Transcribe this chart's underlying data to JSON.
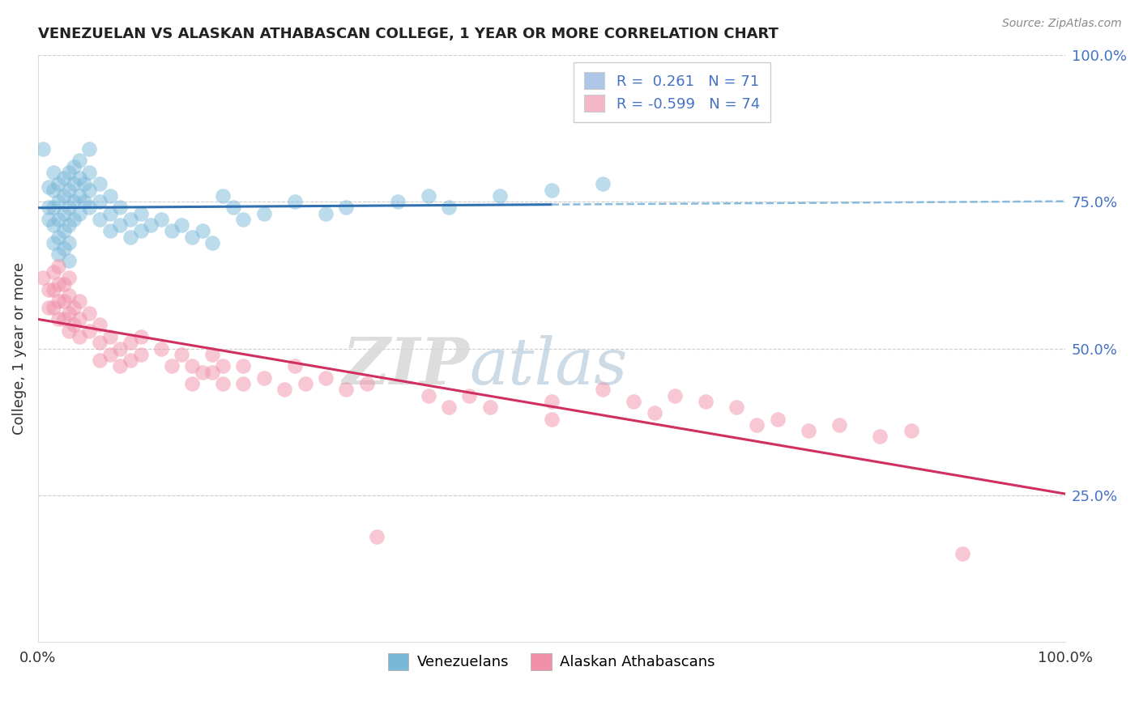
{
  "title": "VENEZUELAN VS ALASKAN ATHABASCAN COLLEGE, 1 YEAR OR MORE CORRELATION CHART",
  "source": "Source: ZipAtlas.com",
  "ylabel": "College, 1 year or more",
  "xlim": [
    0,
    1
  ],
  "ylim": [
    0,
    1
  ],
  "ytick_labels": [
    "25.0%",
    "50.0%",
    "75.0%",
    "100.0%"
  ],
  "ytick_values": [
    0.25,
    0.5,
    0.75,
    1.0
  ],
  "legend_entries": [
    {
      "label": "R =  0.261   N = 71",
      "color": "#aec6e8"
    },
    {
      "label": "R = -0.599   N = 74",
      "color": "#f4b8c8"
    }
  ],
  "watermark_zip": "ZIP",
  "watermark_atlas": "atlas",
  "venezuelan_color": "#7ab8d9",
  "alaskan_color": "#f090aa",
  "regression_venezuelan_color": "#3070b0",
  "regression_alaskan_color": "#d03060",
  "dashed_line_color": "#88bbdd",
  "venezuelan_R": 0.261,
  "venezuelan_N": 71,
  "alaskan_R": -0.599,
  "alaskan_N": 74,
  "venezuelan_points": [
    [
      0.005,
      0.84
    ],
    [
      0.01,
      0.775
    ],
    [
      0.01,
      0.74
    ],
    [
      0.01,
      0.72
    ],
    [
      0.015,
      0.8
    ],
    [
      0.015,
      0.77
    ],
    [
      0.015,
      0.74
    ],
    [
      0.015,
      0.71
    ],
    [
      0.015,
      0.68
    ],
    [
      0.02,
      0.78
    ],
    [
      0.02,
      0.75
    ],
    [
      0.02,
      0.72
    ],
    [
      0.02,
      0.69
    ],
    [
      0.02,
      0.66
    ],
    [
      0.025,
      0.79
    ],
    [
      0.025,
      0.76
    ],
    [
      0.025,
      0.73
    ],
    [
      0.025,
      0.7
    ],
    [
      0.025,
      0.67
    ],
    [
      0.03,
      0.8
    ],
    [
      0.03,
      0.77
    ],
    [
      0.03,
      0.74
    ],
    [
      0.03,
      0.71
    ],
    [
      0.03,
      0.68
    ],
    [
      0.03,
      0.65
    ],
    [
      0.035,
      0.81
    ],
    [
      0.035,
      0.78
    ],
    [
      0.035,
      0.75
    ],
    [
      0.035,
      0.72
    ],
    [
      0.04,
      0.82
    ],
    [
      0.04,
      0.79
    ],
    [
      0.04,
      0.76
    ],
    [
      0.04,
      0.73
    ],
    [
      0.045,
      0.78
    ],
    [
      0.045,
      0.75
    ],
    [
      0.05,
      0.84
    ],
    [
      0.05,
      0.8
    ],
    [
      0.05,
      0.77
    ],
    [
      0.05,
      0.74
    ],
    [
      0.06,
      0.78
    ],
    [
      0.06,
      0.75
    ],
    [
      0.06,
      0.72
    ],
    [
      0.07,
      0.76
    ],
    [
      0.07,
      0.73
    ],
    [
      0.07,
      0.7
    ],
    [
      0.08,
      0.74
    ],
    [
      0.08,
      0.71
    ],
    [
      0.09,
      0.72
    ],
    [
      0.09,
      0.69
    ],
    [
      0.1,
      0.73
    ],
    [
      0.1,
      0.7
    ],
    [
      0.11,
      0.71
    ],
    [
      0.12,
      0.72
    ],
    [
      0.13,
      0.7
    ],
    [
      0.14,
      0.71
    ],
    [
      0.15,
      0.69
    ],
    [
      0.16,
      0.7
    ],
    [
      0.17,
      0.68
    ],
    [
      0.18,
      0.76
    ],
    [
      0.19,
      0.74
    ],
    [
      0.2,
      0.72
    ],
    [
      0.22,
      0.73
    ],
    [
      0.25,
      0.75
    ],
    [
      0.28,
      0.73
    ],
    [
      0.3,
      0.74
    ],
    [
      0.35,
      0.75
    ],
    [
      0.38,
      0.76
    ],
    [
      0.4,
      0.74
    ],
    [
      0.45,
      0.76
    ],
    [
      0.5,
      0.77
    ],
    [
      0.55,
      0.78
    ]
  ],
  "alaskan_points": [
    [
      0.005,
      0.62
    ],
    [
      0.01,
      0.6
    ],
    [
      0.01,
      0.57
    ],
    [
      0.015,
      0.63
    ],
    [
      0.015,
      0.6
    ],
    [
      0.015,
      0.57
    ],
    [
      0.02,
      0.64
    ],
    [
      0.02,
      0.61
    ],
    [
      0.02,
      0.58
    ],
    [
      0.02,
      0.55
    ],
    [
      0.025,
      0.61
    ],
    [
      0.025,
      0.58
    ],
    [
      0.025,
      0.55
    ],
    [
      0.03,
      0.62
    ],
    [
      0.03,
      0.59
    ],
    [
      0.03,
      0.56
    ],
    [
      0.03,
      0.53
    ],
    [
      0.035,
      0.57
    ],
    [
      0.035,
      0.54
    ],
    [
      0.04,
      0.58
    ],
    [
      0.04,
      0.55
    ],
    [
      0.04,
      0.52
    ],
    [
      0.05,
      0.56
    ],
    [
      0.05,
      0.53
    ],
    [
      0.06,
      0.54
    ],
    [
      0.06,
      0.51
    ],
    [
      0.06,
      0.48
    ],
    [
      0.07,
      0.52
    ],
    [
      0.07,
      0.49
    ],
    [
      0.08,
      0.5
    ],
    [
      0.08,
      0.47
    ],
    [
      0.09,
      0.51
    ],
    [
      0.09,
      0.48
    ],
    [
      0.1,
      0.49
    ],
    [
      0.1,
      0.52
    ],
    [
      0.12,
      0.5
    ],
    [
      0.13,
      0.47
    ],
    [
      0.14,
      0.49
    ],
    [
      0.15,
      0.47
    ],
    [
      0.15,
      0.44
    ],
    [
      0.16,
      0.46
    ],
    [
      0.17,
      0.49
    ],
    [
      0.17,
      0.46
    ],
    [
      0.18,
      0.47
    ],
    [
      0.18,
      0.44
    ],
    [
      0.2,
      0.47
    ],
    [
      0.2,
      0.44
    ],
    [
      0.22,
      0.45
    ],
    [
      0.24,
      0.43
    ],
    [
      0.25,
      0.47
    ],
    [
      0.26,
      0.44
    ],
    [
      0.28,
      0.45
    ],
    [
      0.3,
      0.43
    ],
    [
      0.32,
      0.44
    ],
    [
      0.33,
      0.18
    ],
    [
      0.38,
      0.42
    ],
    [
      0.4,
      0.4
    ],
    [
      0.42,
      0.42
    ],
    [
      0.44,
      0.4
    ],
    [
      0.5,
      0.41
    ],
    [
      0.5,
      0.38
    ],
    [
      0.55,
      0.43
    ],
    [
      0.58,
      0.41
    ],
    [
      0.6,
      0.39
    ],
    [
      0.62,
      0.42
    ],
    [
      0.65,
      0.41
    ],
    [
      0.68,
      0.4
    ],
    [
      0.7,
      0.37
    ],
    [
      0.72,
      0.38
    ],
    [
      0.75,
      0.36
    ],
    [
      0.78,
      0.37
    ],
    [
      0.82,
      0.35
    ],
    [
      0.85,
      0.36
    ],
    [
      0.9,
      0.15
    ]
  ]
}
